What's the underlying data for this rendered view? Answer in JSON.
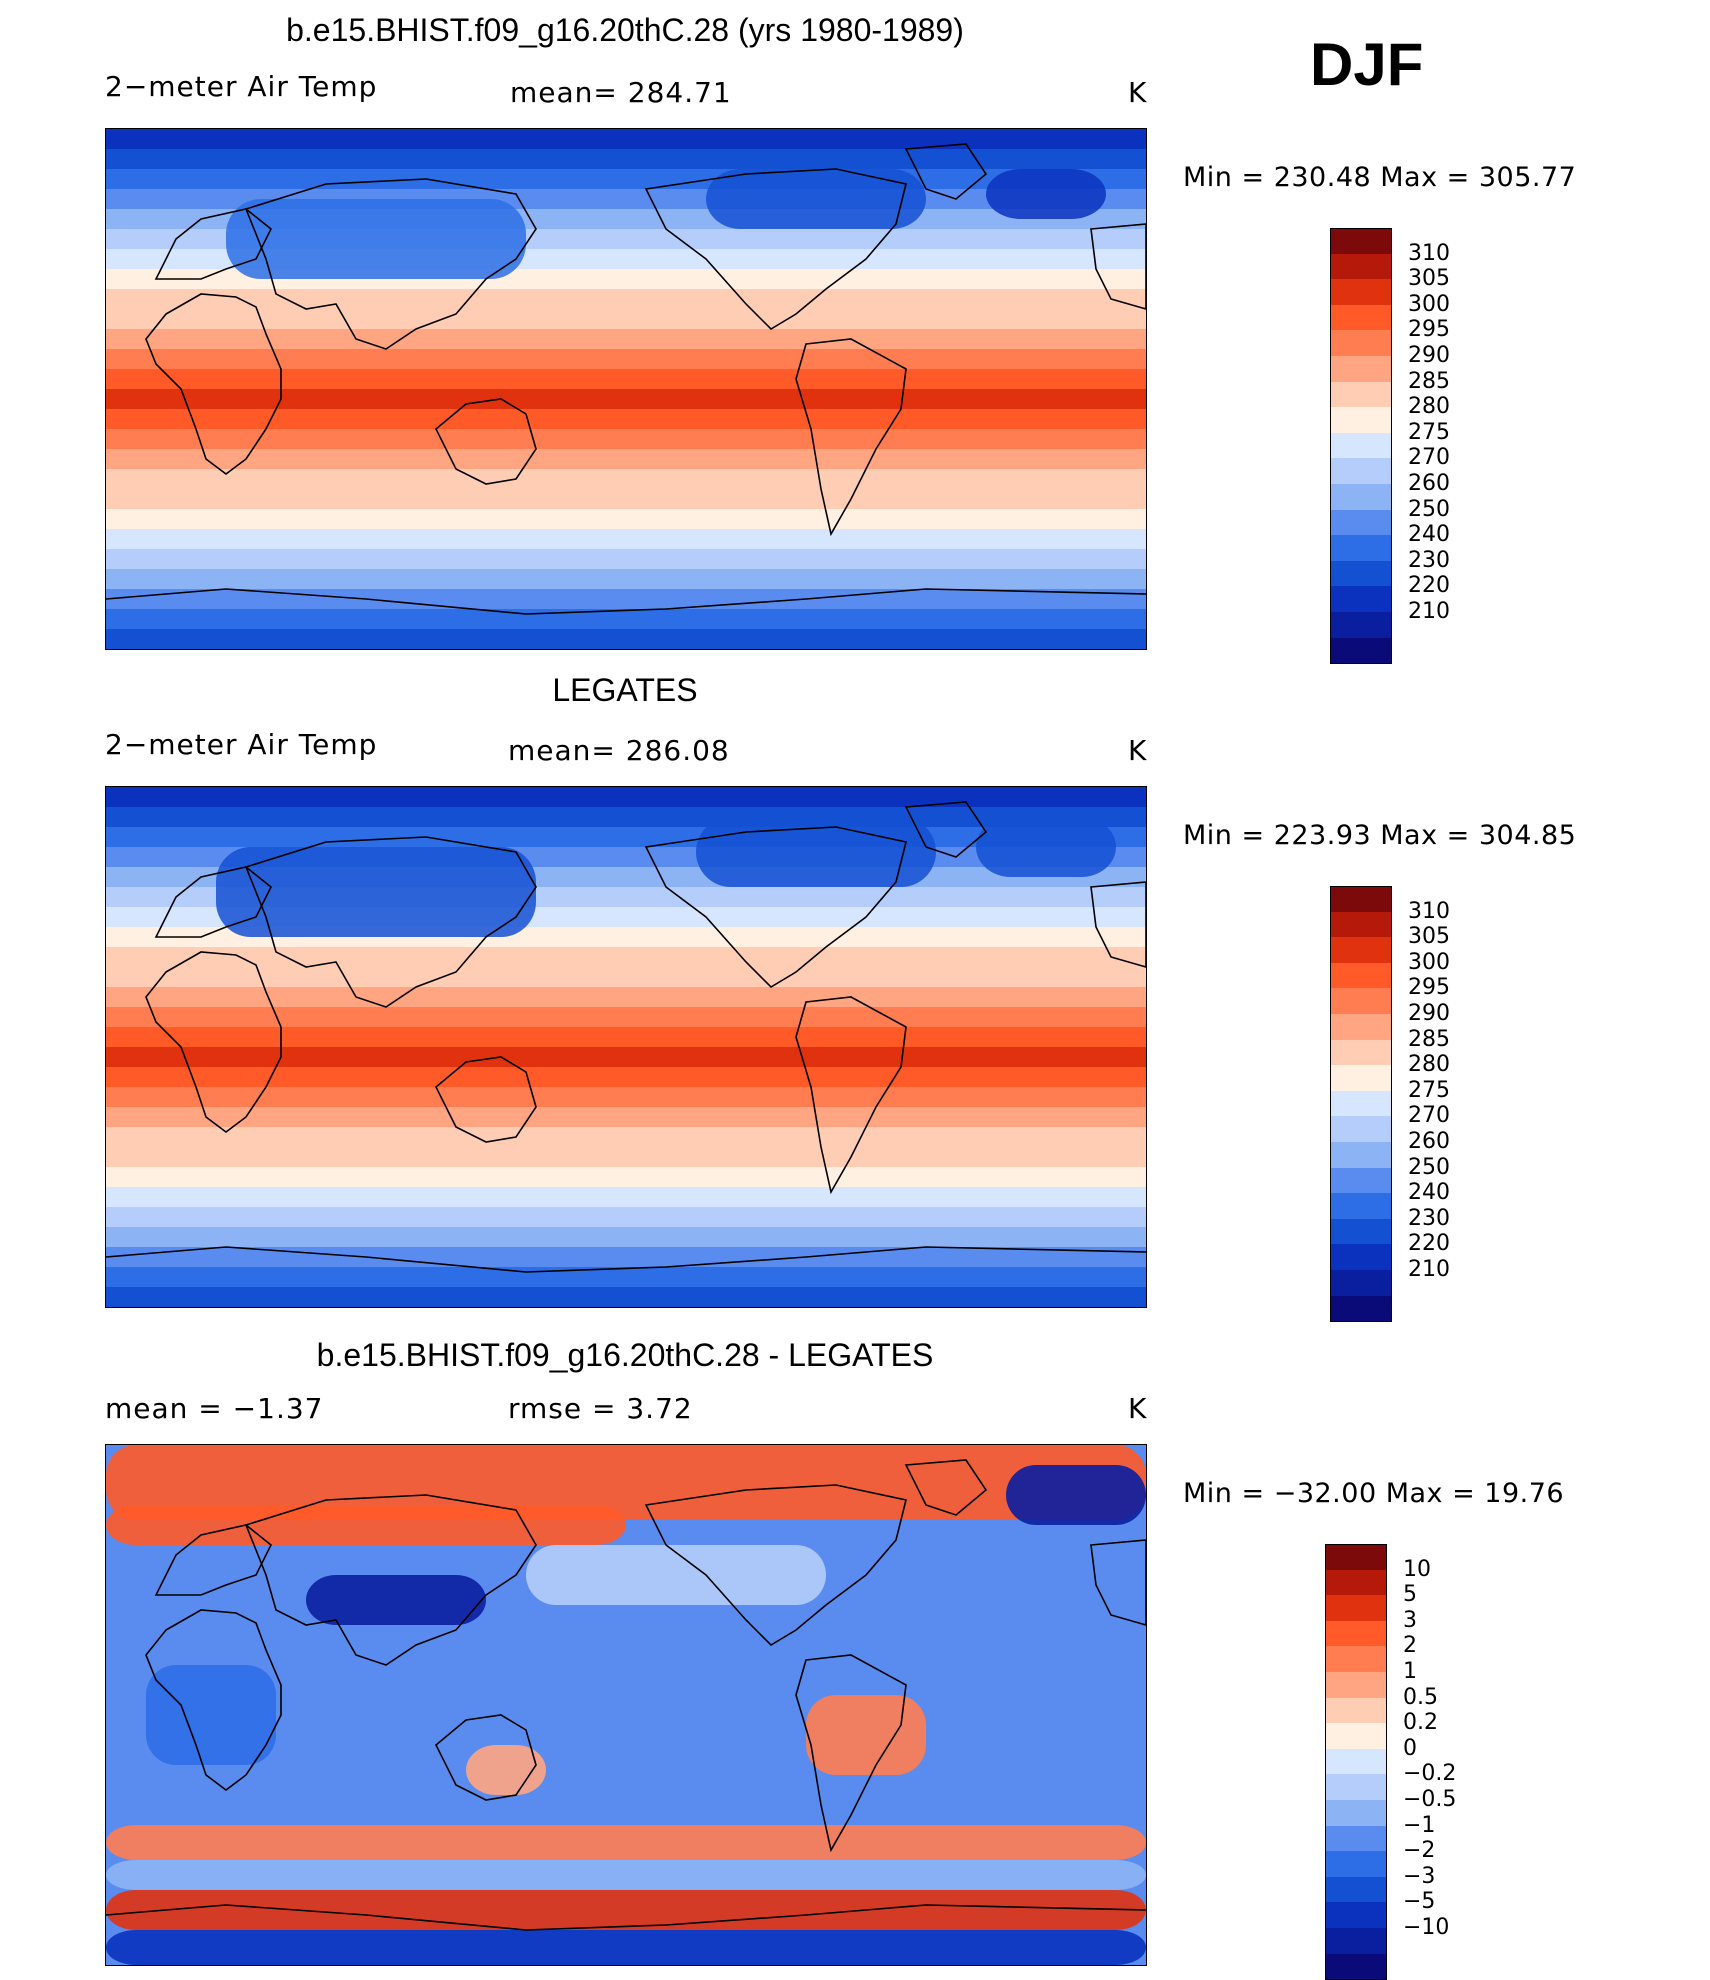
{
  "season": "DJF",
  "colors": {
    "temp": [
      "#0a0a78",
      "#0a1ea0",
      "#0a32be",
      "#1450d2",
      "#2d6ee6",
      "#5a8cf0",
      "#8cb4f5",
      "#b4cdfa",
      "#d7e6ff",
      "#fff0e1",
      "#ffcdb4",
      "#ffa582",
      "#ff7d50",
      "#ff5a28",
      "#e1320f",
      "#b4190a",
      "#7d0a0a"
    ],
    "diff": [
      "#0a0a78",
      "#0a1ea0",
      "#0a32be",
      "#1450d2",
      "#2d6ee6",
      "#5a8cf0",
      "#8cb4f5",
      "#b4cdfa",
      "#d7e6ff",
      "#fff0e1",
      "#ffcdb4",
      "#ffa582",
      "#ff7d50",
      "#ff5a28",
      "#e1320f",
      "#b4190a",
      "#7d0a0a"
    ]
  },
  "panels": [
    {
      "title": "b.e15.BHIST.f09_g16.20thC.28 (yrs 1980-1989)",
      "left_label": "2−meter Air Temp",
      "mid_label": "mean=  284.71",
      "right_label": "K",
      "minmax": "Min  =  230.48  Max  =  305.77",
      "map_icon": "world-map-temperature",
      "colorbar_labels": [
        "310",
        "305",
        "300",
        "295",
        "290",
        "285",
        "280",
        "275",
        "270",
        "260",
        "250",
        "240",
        "230",
        "220",
        "210"
      ]
    },
    {
      "title": "LEGATES",
      "left_label": "2−meter Air Temp",
      "mid_label": "mean=  286.08",
      "right_label": "K",
      "minmax": "Min  =  223.93  Max  =  304.85",
      "map_icon": "world-map-temperature",
      "colorbar_labels": [
        "310",
        "305",
        "300",
        "295",
        "290",
        "285",
        "280",
        "275",
        "270",
        "260",
        "250",
        "240",
        "230",
        "220",
        "210"
      ]
    },
    {
      "title": "b.e15.BHIST.f09_g16.20thC.28 - LEGATES",
      "left_label": "mean  =     −1.37",
      "mid_label": "rmse  =      3.72",
      "right_label": "K",
      "minmax": "Min  =  −32.00  Max  =    19.76",
      "map_icon": "world-map-difference",
      "colorbar_labels": [
        "10",
        "5",
        "3",
        "2",
        "1",
        "0.5",
        "0.2",
        "0",
        "−0.2",
        "−0.5",
        "−1",
        "−2",
        "−3",
        "−5",
        "−10"
      ]
    }
  ]
}
